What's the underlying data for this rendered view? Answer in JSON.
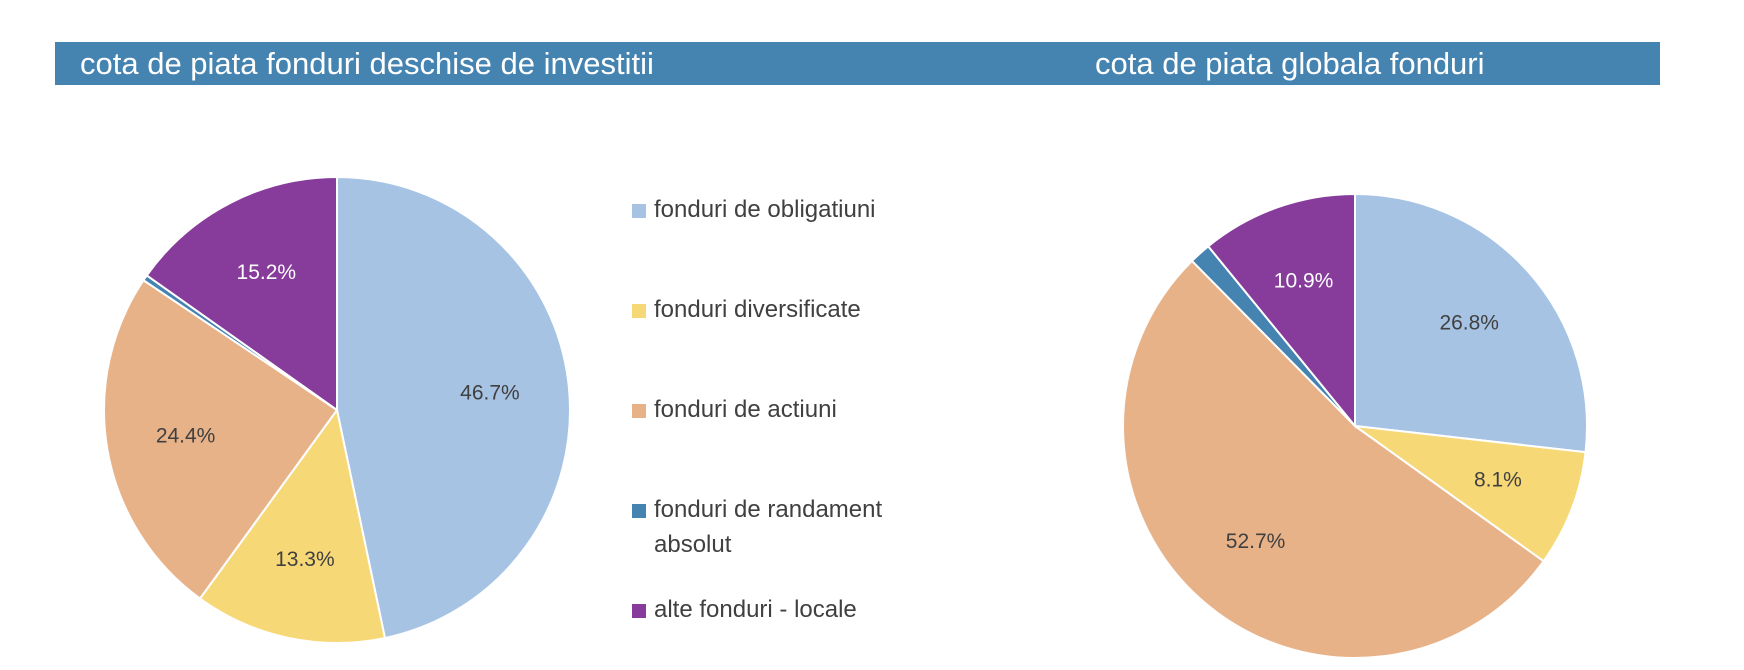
{
  "titles": {
    "left": "cota de piata fonduri deschise de investitii",
    "right": "cota de piata globala fonduri"
  },
  "colors": {
    "header": "#4583b1",
    "fonduri de obligatiuni": "#a6c3e4",
    "fonduri diversificate": "#f7d877",
    "fonduri de actiuni": "#e8b289",
    "fonduri de randament absolut": "#4583b1",
    "alte fonduri - locale": "#873c9b"
  },
  "legend": [
    {
      "label": "fonduri de obligatiuni",
      "color": "#a6c3e4"
    },
    {
      "label": "fonduri diversificate",
      "color": "#f7d877"
    },
    {
      "label": "fonduri de actiuni",
      "color": "#e8b289"
    },
    {
      "label": "fonduri de randament absolut",
      "color": "#4583b1"
    },
    {
      "label": "alte fonduri - locale",
      "color": "#873c9b"
    }
  ],
  "chart_data": [
    {
      "type": "pie",
      "title": "cota de piata fonduri deschise de investitii",
      "slices": [
        {
          "label": "fonduri de obligatiuni",
          "value": 46.7,
          "display": "46.7%",
          "color": "#a6c3e4"
        },
        {
          "label": "fonduri diversificate",
          "value": 13.3,
          "display": "13.3%",
          "color": "#f7d877"
        },
        {
          "label": "fonduri de actiuni",
          "value": 24.4,
          "display": "24.4%",
          "color": "#e8b289"
        },
        {
          "label": "fonduri de randament absolut",
          "value": 0.4,
          "display": "",
          "color": "#4583b1"
        },
        {
          "label": "alte fonduri - locale",
          "value": 15.2,
          "display": "15.2%",
          "color": "#873c9b"
        }
      ]
    },
    {
      "type": "pie",
      "title": "cota de piata globala fonduri",
      "slices": [
        {
          "label": "fonduri de obligatiuni",
          "value": 26.8,
          "display": "26.8%",
          "color": "#a6c3e4"
        },
        {
          "label": "fonduri diversificate",
          "value": 8.1,
          "display": "8.1%",
          "color": "#f7d877"
        },
        {
          "label": "fonduri de actiuni",
          "value": 52.7,
          "display": "52.7%",
          "color": "#e8b289"
        },
        {
          "label": "fonduri de randament absolut",
          "value": 1.5,
          "display": "",
          "color": "#4583b1"
        },
        {
          "label": "alte fonduri - locale",
          "value": 10.9,
          "display": "10.9%",
          "color": "#873c9b"
        }
      ]
    }
  ]
}
